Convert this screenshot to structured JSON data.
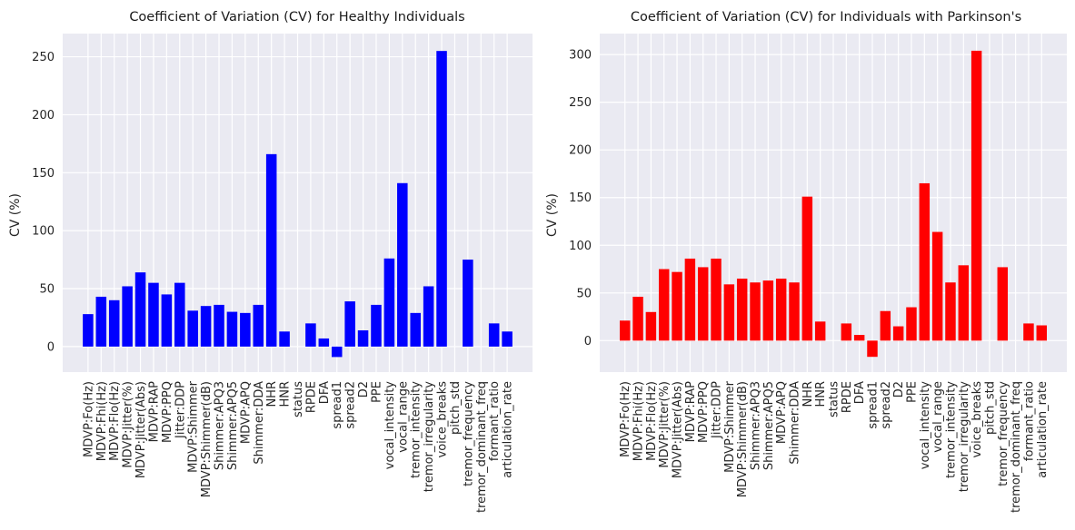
{
  "chart_data": [
    {
      "type": "bar",
      "title": "Coefficient of Variation (CV) for Healthy Individuals",
      "ylabel": "CV (%)",
      "ylim": [
        -22,
        270
      ],
      "yticks": [
        0,
        50,
        100,
        150,
        200,
        250
      ],
      "bar_color": "#0000ff",
      "grid": true,
      "categories": [
        "MDVP:Fo(Hz)",
        "MDVP:Fhi(Hz)",
        "MDVP:Flo(Hz)",
        "MDVP:Jitter(%)",
        "MDVP:Jitter(Abs)",
        "MDVP:RAP",
        "MDVP:PPQ",
        "Jitter:DDP",
        "MDVP:Shimmer",
        "MDVP:Shimmer(dB)",
        "Shimmer:APQ3",
        "Shimmer:APQ5",
        "MDVP:APQ",
        "Shimmer:DDA",
        "NHR",
        "HNR",
        "status",
        "RPDE",
        "DFA",
        "spread1",
        "spread2",
        "D2",
        "PPE",
        "vocal_intensity",
        "vocal_range",
        "tremor_intensity",
        "tremor_irregularity",
        "voice_breaks",
        "pitch_std",
        "tremor_frequency",
        "tremor_dominant_freq",
        "formant_ratio",
        "articulation_rate"
      ],
      "values": [
        28,
        43,
        40,
        52,
        64,
        55,
        45,
        55,
        31,
        35,
        36,
        30,
        29,
        36,
        166,
        13,
        0,
        20,
        7,
        -9,
        39,
        14,
        36,
        76,
        141,
        29,
        52,
        255,
        0,
        75,
        0,
        20,
        13
      ]
    },
    {
      "type": "bar",
      "title": "Coefficient of Variation (CV) for Individuals with Parkinson's",
      "ylabel": "CV (%)",
      "ylim": [
        -33,
        322
      ],
      "yticks": [
        0,
        50,
        100,
        150,
        200,
        250,
        300
      ],
      "bar_color": "#ff0000",
      "grid": true,
      "categories": [
        "MDVP:Fo(Hz)",
        "MDVP:Fhi(Hz)",
        "MDVP:Flo(Hz)",
        "MDVP:Jitter(%)",
        "MDVP:Jitter(Abs)",
        "MDVP:RAP",
        "MDVP:PPQ",
        "Jitter:DDP",
        "MDVP:Shimmer",
        "MDVP:Shimmer(dB)",
        "Shimmer:APQ3",
        "Shimmer:APQ5",
        "MDVP:APQ",
        "Shimmer:DDA",
        "NHR",
        "HNR",
        "status",
        "RPDE",
        "DFA",
        "spread1",
        "spread2",
        "D2",
        "PPE",
        "vocal_intensity",
        "vocal_range",
        "tremor_intensity",
        "tremor_irregularity",
        "voice_breaks",
        "pitch_std",
        "tremor_frequency",
        "tremor_dominant_freq",
        "formant_ratio",
        "articulation_rate"
      ],
      "values": [
        21,
        46,
        30,
        75,
        72,
        86,
        77,
        86,
        59,
        65,
        61,
        63,
        65,
        61,
        151,
        20,
        0,
        18,
        6,
        -17,
        31,
        15,
        35,
        165,
        114,
        61,
        79,
        304,
        0,
        77,
        0,
        18,
        16
      ]
    }
  ]
}
